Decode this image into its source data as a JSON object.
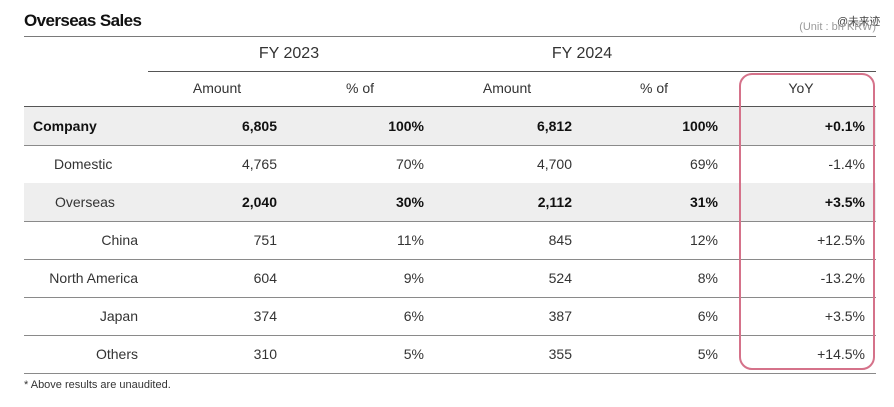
{
  "title": "Overseas Sales",
  "unit": "(Unit : bn KRW)",
  "watermark": "@未来迹",
  "fy_headers": [
    "FY 2023",
    "FY 2024"
  ],
  "column_headers": [
    "Amount",
    "% of",
    "Amount",
    "% of",
    "YoY"
  ],
  "rows": [
    {
      "label": "Company",
      "fy2023_amount": "6,805",
      "fy2023_pct": "100%",
      "fy2024_amount": "6,812",
      "fy2024_pct": "100%",
      "yoy": "+0.1%"
    },
    {
      "label": "Domestic",
      "fy2023_amount": "4,765",
      "fy2023_pct": "70%",
      "fy2024_amount": "4,700",
      "fy2024_pct": "69%",
      "yoy": "-1.4%"
    },
    {
      "label": "Overseas",
      "fy2023_amount": "2,040",
      "fy2023_pct": "30%",
      "fy2024_amount": "2,112",
      "fy2024_pct": "31%",
      "yoy": "+3.5%"
    },
    {
      "label": "China",
      "fy2023_amount": "751",
      "fy2023_pct": "11%",
      "fy2024_amount": "845",
      "fy2024_pct": "12%",
      "yoy": "+12.5%"
    },
    {
      "label": "North America",
      "fy2023_amount": "604",
      "fy2023_pct": "9%",
      "fy2024_amount": "524",
      "fy2024_pct": "8%",
      "yoy": "-13.2%"
    },
    {
      "label": "Japan",
      "fy2023_amount": "374",
      "fy2023_pct": "6%",
      "fy2024_amount": "387",
      "fy2024_pct": "6%",
      "yoy": "+3.5%"
    },
    {
      "label": "Others",
      "fy2023_amount": "310",
      "fy2023_pct": "5%",
      "fy2024_amount": "355",
      "fy2024_pct": "5%",
      "yoy": "+14.5%"
    }
  ],
  "footnote": "* Above results are unaudited.",
  "colors": {
    "highlight_border": "#d5728a",
    "shaded_row": "#eeeeee"
  }
}
